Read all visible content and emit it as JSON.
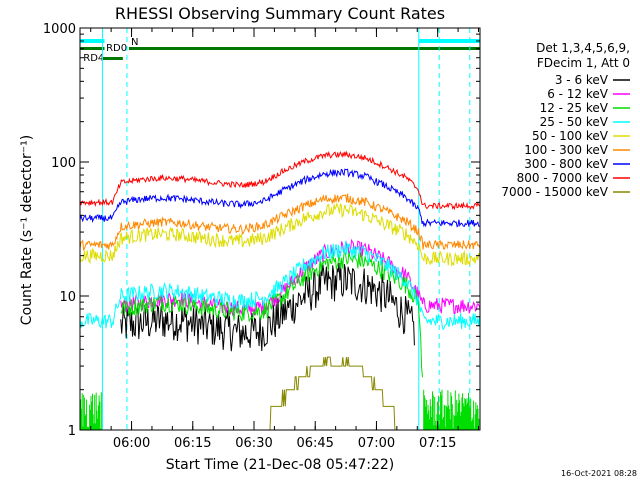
{
  "chart_data": {
    "type": "line",
    "title": "RHESSI Observing Summary Count Rates",
    "xlabel": "Start Time (21-Dec-08 05:47:22)",
    "ylabel": "Count Rate (s⁻¹ detector⁻¹)",
    "y_scale": "log",
    "ylim": [
      1,
      1000
    ],
    "xlim_minutes_after_start": [
      0,
      98
    ],
    "y_ticks": [
      {
        "value": 1,
        "label": "1"
      },
      {
        "value": 10,
        "label": "10"
      },
      {
        "value": 100,
        "label": "100"
      },
      {
        "value": 1000,
        "label": "1000"
      }
    ],
    "x_ticks": [
      {
        "value": 12.63,
        "label": "06:00"
      },
      {
        "value": 27.63,
        "label": "06:15"
      },
      {
        "value": 42.63,
        "label": "06:30"
      },
      {
        "value": 57.63,
        "label": "06:45"
      },
      {
        "value": 72.63,
        "label": "07:00"
      },
      {
        "value": 87.63,
        "label": "07:15"
      }
    ],
    "legend_header": [
      "Det 1,3,4,5,6,9,",
      "FDecim 1, Att 0"
    ],
    "legend_position": "right",
    "series": [
      {
        "name": "3 - 6 keV",
        "color": "#000000",
        "points": [
          [
            10,
            6
          ],
          [
            15,
            6.3
          ],
          [
            20,
            6.6
          ],
          [
            25,
            6.5
          ],
          [
            30,
            6
          ],
          [
            35,
            5.6
          ],
          [
            40,
            5.3
          ],
          [
            45,
            5.5
          ],
          [
            50,
            7.5
          ],
          [
            55,
            10
          ],
          [
            60,
            12.5
          ],
          [
            65,
            13
          ],
          [
            70,
            12
          ],
          [
            75,
            10
          ],
          [
            80,
            7
          ],
          [
            82,
            5.5
          ]
        ]
      },
      {
        "name": "6 - 12 keV",
        "color": "#ff00ff",
        "points": [
          [
            10,
            8.5
          ],
          [
            15,
            9
          ],
          [
            20,
            9.5
          ],
          [
            25,
            9.5
          ],
          [
            30,
            8.8
          ],
          [
            35,
            8.3
          ],
          [
            40,
            8
          ],
          [
            45,
            8.3
          ],
          [
            50,
            11
          ],
          [
            55,
            16
          ],
          [
            60,
            21
          ],
          [
            65,
            23
          ],
          [
            70,
            22
          ],
          [
            75,
            18
          ],
          [
            80,
            14
          ],
          [
            83,
            10
          ],
          [
            84,
            8.5
          ],
          [
            98,
            8.5
          ]
        ]
      },
      {
        "name": "12 - 25 keV",
        "color": "#00dd00",
        "points": [
          [
            10,
            8
          ],
          [
            15,
            8.5
          ],
          [
            20,
            9
          ],
          [
            25,
            8.7
          ],
          [
            30,
            8.2
          ],
          [
            35,
            7.8
          ],
          [
            40,
            7.5
          ],
          [
            45,
            7.8
          ],
          [
            50,
            10
          ],
          [
            55,
            14
          ],
          [
            60,
            17.5
          ],
          [
            65,
            19
          ],
          [
            70,
            18
          ],
          [
            75,
            15
          ],
          [
            80,
            12
          ],
          [
            83,
            9
          ],
          [
            84,
            2
          ]
        ]
      },
      {
        "name": "25 - 50 keV",
        "color": "#00ffff",
        "points": [
          [
            0,
            6.5
          ],
          [
            8,
            6.5
          ],
          [
            10,
            10
          ],
          [
            15,
            10.5
          ],
          [
            20,
            11
          ],
          [
            25,
            10.8
          ],
          [
            30,
            10
          ],
          [
            35,
            9.5
          ],
          [
            40,
            9.2
          ],
          [
            45,
            9.7
          ],
          [
            50,
            12.5
          ],
          [
            55,
            17
          ],
          [
            60,
            21
          ],
          [
            65,
            22.5
          ],
          [
            70,
            21
          ],
          [
            75,
            17
          ],
          [
            80,
            13
          ],
          [
            83,
            9
          ],
          [
            84,
            6.5
          ],
          [
            98,
            6.5
          ]
        ]
      },
      {
        "name": "50 - 100 keV",
        "color": "#dddd00",
        "points": [
          [
            0,
            20
          ],
          [
            8,
            20
          ],
          [
            10,
            27
          ],
          [
            15,
            28.5
          ],
          [
            20,
            29
          ],
          [
            25,
            28.5
          ],
          [
            30,
            27
          ],
          [
            35,
            26
          ],
          [
            40,
            25.5
          ],
          [
            45,
            27
          ],
          [
            50,
            32
          ],
          [
            55,
            38
          ],
          [
            60,
            43
          ],
          [
            65,
            44
          ],
          [
            70,
            40
          ],
          [
            75,
            34
          ],
          [
            80,
            29
          ],
          [
            83,
            24
          ],
          [
            84,
            19
          ],
          [
            98,
            19
          ]
        ]
      },
      {
        "name": "100 - 300 keV",
        "color": "#ff8800",
        "points": [
          [
            0,
            24
          ],
          [
            8,
            24
          ],
          [
            10,
            33
          ],
          [
            15,
            34.5
          ],
          [
            20,
            35.5
          ],
          [
            25,
            35
          ],
          [
            30,
            33
          ],
          [
            35,
            32
          ],
          [
            40,
            31.5
          ],
          [
            45,
            33.5
          ],
          [
            50,
            40
          ],
          [
            55,
            47
          ],
          [
            60,
            53
          ],
          [
            65,
            54
          ],
          [
            70,
            50
          ],
          [
            75,
            43
          ],
          [
            80,
            36
          ],
          [
            83,
            30
          ],
          [
            84,
            24
          ],
          [
            98,
            24
          ]
        ]
      },
      {
        "name": "300 - 800 keV",
        "color": "#0000ff",
        "points": [
          [
            0,
            38
          ],
          [
            8,
            38
          ],
          [
            10,
            50
          ],
          [
            15,
            53
          ],
          [
            20,
            54
          ],
          [
            25,
            53
          ],
          [
            30,
            51
          ],
          [
            35,
            49
          ],
          [
            40,
            48
          ],
          [
            45,
            51
          ],
          [
            50,
            62
          ],
          [
            55,
            73
          ],
          [
            60,
            82
          ],
          [
            65,
            84
          ],
          [
            70,
            78
          ],
          [
            75,
            66
          ],
          [
            80,
            54
          ],
          [
            83,
            44
          ],
          [
            84,
            35
          ],
          [
            98,
            35
          ]
        ]
      },
      {
        "name": "800 - 7000 keV",
        "color": "#ff0000",
        "points": [
          [
            0,
            50
          ],
          [
            8,
            50
          ],
          [
            10,
            70
          ],
          [
            15,
            74
          ],
          [
            20,
            76
          ],
          [
            25,
            75
          ],
          [
            30,
            72
          ],
          [
            35,
            69
          ],
          [
            40,
            67
          ],
          [
            45,
            71
          ],
          [
            50,
            86
          ],
          [
            55,
            101
          ],
          [
            60,
            112
          ],
          [
            65,
            114
          ],
          [
            70,
            107
          ],
          [
            75,
            92
          ],
          [
            80,
            76
          ],
          [
            83,
            62
          ],
          [
            84,
            47
          ],
          [
            98,
            47
          ]
        ]
      },
      {
        "name": "7000 - 15000 keV",
        "color": "#888800",
        "points": [
          [
            25,
            1
          ],
          [
            45,
            1
          ],
          [
            48,
            1.5
          ],
          [
            52,
            2
          ],
          [
            55,
            2.7
          ],
          [
            60,
            3.2
          ],
          [
            65,
            3.2
          ],
          [
            70,
            2.7
          ],
          [
            73,
            2
          ],
          [
            76,
            1.5
          ],
          [
            78,
            1
          ]
        ]
      }
    ],
    "state_bars": [
      {
        "label": "N",
        "color": "#00ffff"
      },
      {
        "label": "RD0",
        "color": "#007700"
      },
      {
        "label": "RD4",
        "color": "#007700"
      }
    ],
    "footer_timestamp": "16-Oct-2021 08:28"
  }
}
